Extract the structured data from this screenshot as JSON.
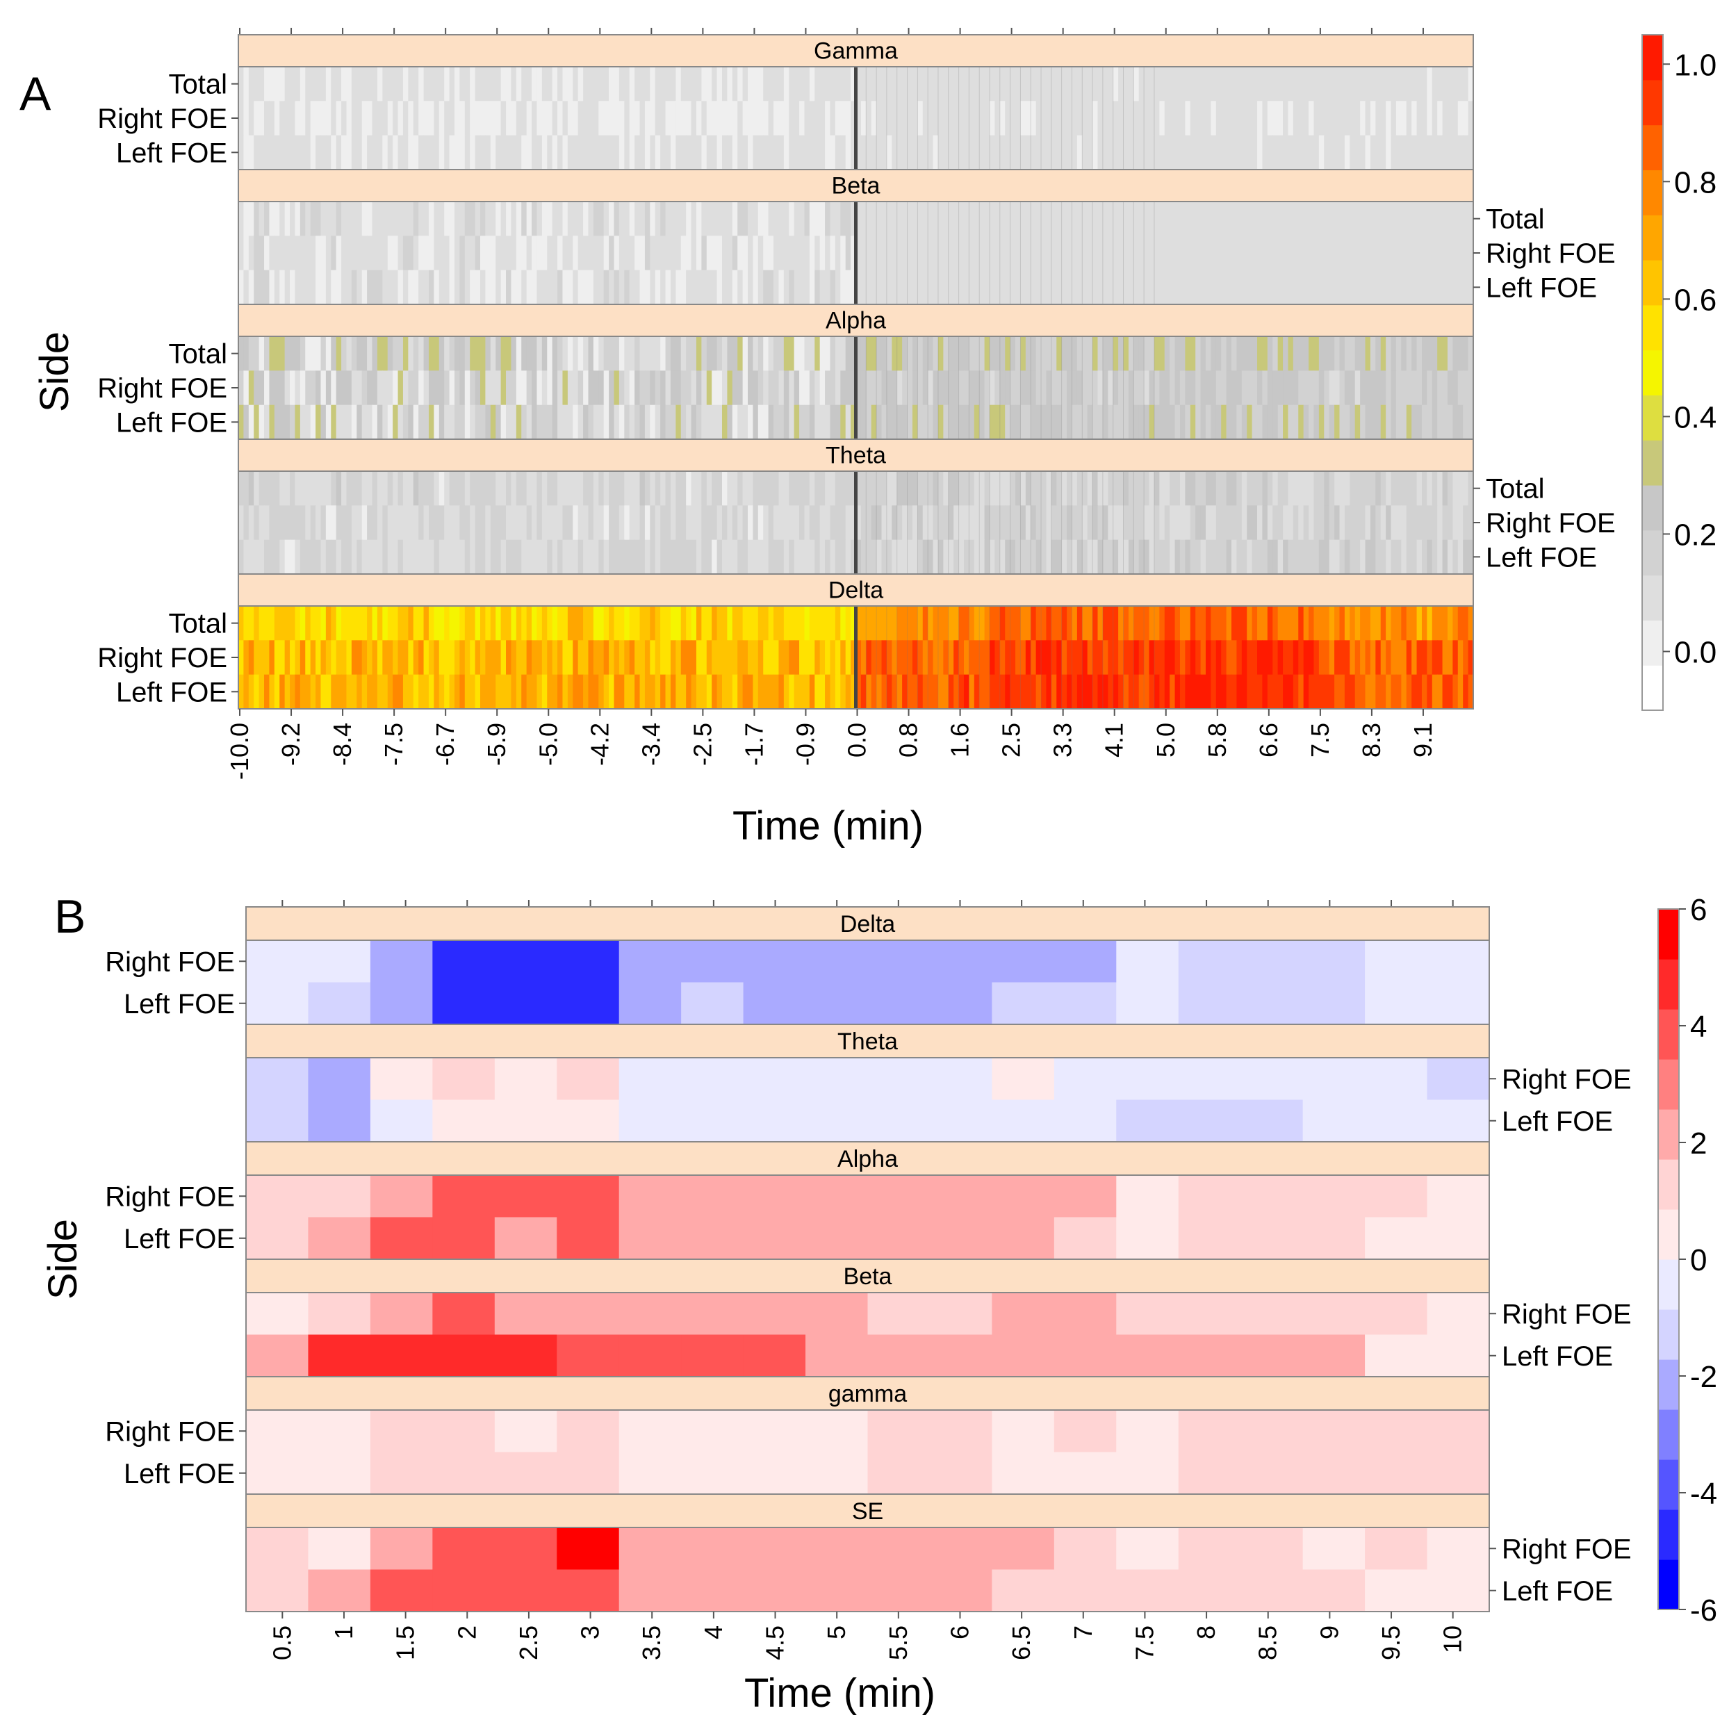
{
  "panels": [
    {
      "letter": "A",
      "chart_data": {
        "type": "heatmap",
        "panel_label": "A",
        "xlabel": "Time (min)",
        "ylabel": "Side",
        "rows": [
          "Total",
          "Right FOE",
          "Left FOE"
        ],
        "x_tick_labels": [
          "-10.0",
          "-9.2",
          "-8.4",
          "-7.5",
          "-6.7",
          "-5.9",
          "-5.0",
          "-4.2",
          "-3.4",
          "-2.5",
          "-1.7",
          "-0.9",
          "0.0",
          "0.8",
          "1.6",
          "2.5",
          "3.3",
          "4.1",
          "5.0",
          "5.8",
          "6.6",
          "7.5",
          "8.3",
          "9.1"
        ],
        "n_columns": 240,
        "event_column": 120,
        "colorbar": {
          "ticks": [
            "1.0",
            "0.8",
            "0.6",
            "0.4",
            "0.2",
            "0.0"
          ],
          "range": [
            -0.1,
            1.05
          ],
          "colors": [
            "#ffffff",
            "#efefef",
            "#dedede",
            "#d2d2d2",
            "#c7c7c7",
            "#c8c87a",
            "#dede40",
            "#f5f500",
            "#ffe200",
            "#ffc400",
            "#ffa600",
            "#ff8800",
            "#ff6200",
            "#ff3800",
            "#ff1a00"
          ]
        },
        "facets": [
          {
            "name": "Gamma",
            "label_side": "left",
            "base": [
              0.06,
              0.05,
              0.06
            ],
            "amp": [
              0.02,
              0.02,
              0.02
            ],
            "pre_noise": 0.02,
            "post_noise": 0.03
          },
          {
            "name": "Beta",
            "label_side": "right",
            "base": [
              0.08,
              0.07,
              0.08
            ],
            "amp": [
              0.02,
              0.02,
              0.02
            ],
            "pre_noise": 0.08,
            "post_noise": 0.03
          },
          {
            "name": "Alpha",
            "label_side": "left",
            "base": [
              0.18,
              0.15,
              0.16
            ],
            "amp": [
              0.06,
              0.05,
              0.07
            ],
            "pre_noise": 0.16,
            "post_noise": 0.08
          },
          {
            "name": "Theta",
            "label_side": "right",
            "base": [
              0.13,
              0.12,
              0.13
            ],
            "amp": [
              0.03,
              0.03,
              0.03
            ],
            "pre_noise": 0.08,
            "post_noise": 0.08
          },
          {
            "name": "Delta",
            "label_side": "left",
            "base": [
              0.56,
              0.66,
              0.68
            ],
            "amp": [
              0.2,
              0.2,
              0.2
            ],
            "pre_noise": 0.12,
            "post_noise": 0.1
          }
        ]
      }
    },
    {
      "letter": "B",
      "chart_data": {
        "type": "heatmap",
        "panel_label": "B",
        "xlabel": "Time (min)",
        "ylabel": "Side",
        "rows": [
          "Right FOE",
          "Left FOE"
        ],
        "x_tick_labels": [
          "0.5",
          "1",
          "1.5",
          "2",
          "2.5",
          "3",
          "3.5",
          "4",
          "4.5",
          "5",
          "5.5",
          "6",
          "6.5",
          "7",
          "7.5",
          "8",
          "8.5",
          "9",
          "9.5",
          "10"
        ],
        "colorbar": {
          "ticks": [
            "6",
            "4",
            "2",
            "0",
            "-2",
            "-4",
            "-6"
          ],
          "range": [
            -6,
            6
          ],
          "colors": [
            "#0000ff",
            "#2a2aff",
            "#5555ff",
            "#8080ff",
            "#aaaaff",
            "#d4d4ff",
            "#eaeaff",
            "#ffeaea",
            "#ffd4d4",
            "#ffaaaa",
            "#ff8080",
            "#ff5555",
            "#ff2a2a",
            "#ff0000"
          ]
        },
        "facets": [
          {
            "name": "Delta",
            "label_side": "left",
            "values": [
              [
                -0.5,
                -0.5,
                -2.5,
                -4.5,
                -4.5,
                -4.5,
                -2.5,
                -2.5,
                -2.5,
                -2.5,
                -2.5,
                -2.5,
                -2.5,
                -2.5,
                -0.5,
                -1.5,
                -1.5,
                -1.5,
                -0.5,
                -0.5
              ],
              [
                -0.5,
                -1.5,
                -2.5,
                -4.5,
                -4.5,
                -4.5,
                -2.5,
                -1.5,
                -2.5,
                -2.5,
                -2.5,
                -2.5,
                -1.5,
                -1.5,
                -0.5,
                -1.5,
                -1.5,
                -1.5,
                -0.5,
                -0.5
              ]
            ]
          },
          {
            "name": "Theta",
            "label_side": "right",
            "values": [
              [
                -1.5,
                -2.5,
                0.5,
                1.5,
                0.5,
                1.5,
                -0.5,
                -0.5,
                -0.5,
                -0.5,
                -0.5,
                -0.5,
                0.5,
                -0.5,
                -0.5,
                -0.5,
                -0.5,
                -0.5,
                -0.5,
                -1.5
              ],
              [
                -1.5,
                -2.5,
                -0.5,
                0.5,
                0.5,
                0.5,
                -0.5,
                -0.5,
                -0.5,
                -0.5,
                -0.5,
                -0.5,
                -0.5,
                -0.5,
                -1.5,
                -1.5,
                -1.5,
                -0.5,
                -0.5,
                -0.5
              ]
            ]
          },
          {
            "name": "Alpha",
            "label_side": "left",
            "values": [
              [
                1.5,
                1.5,
                2.5,
                3.5,
                3.5,
                3.5,
                2.5,
                2.5,
                2.5,
                2.5,
                2.5,
                2.5,
                2.5,
                2.5,
                0.5,
                1.5,
                1.5,
                1.5,
                1.5,
                0.5
              ],
              [
                1.5,
                2.5,
                3.5,
                3.5,
                2.5,
                3.5,
                2.5,
                2.5,
                2.5,
                2.5,
                2.5,
                2.5,
                2.5,
                1.5,
                0.5,
                1.5,
                1.5,
                1.5,
                0.5,
                0.5
              ]
            ]
          },
          {
            "name": "Beta",
            "label_side": "right",
            "values": [
              [
                0.5,
                1.5,
                2.5,
                3.5,
                2.5,
                2.5,
                2.5,
                2.5,
                2.5,
                2.5,
                1.5,
                1.5,
                2.5,
                2.5,
                1.5,
                1.5,
                1.5,
                1.5,
                1.5,
                0.5
              ],
              [
                2.5,
                4.5,
                4.5,
                4.5,
                4.5,
                3.5,
                3.5,
                3.5,
                3.5,
                2.5,
                2.5,
                2.5,
                2.5,
                2.5,
                2.5,
                2.5,
                2.5,
                2.5,
                0.5,
                0.5
              ]
            ]
          },
          {
            "name": "gamma",
            "label_side": "left",
            "values": [
              [
                0.5,
                0.5,
                1.5,
                1.5,
                0.5,
                1.5,
                0.5,
                0.5,
                0.5,
                0.5,
                1.5,
                1.5,
                0.5,
                1.5,
                0.5,
                1.5,
                1.5,
                1.5,
                1.5,
                1.5
              ],
              [
                0.5,
                0.5,
                1.5,
                1.5,
                1.5,
                1.5,
                0.5,
                0.5,
                0.5,
                0.5,
                1.5,
                1.5,
                0.5,
                0.5,
                0.5,
                1.5,
                1.5,
                1.5,
                1.5,
                1.5
              ]
            ]
          },
          {
            "name": "SE",
            "label_side": "right",
            "values": [
              [
                1.5,
                0.5,
                2.5,
                3.5,
                3.5,
                5.5,
                2.5,
                2.5,
                2.5,
                2.5,
                2.5,
                2.5,
                2.5,
                1.5,
                0.5,
                1.5,
                1.5,
                0.5,
                1.5,
                0.5
              ],
              [
                1.5,
                2.5,
                3.5,
                3.5,
                3.5,
                3.5,
                2.5,
                2.5,
                2.5,
                2.5,
                2.5,
                2.5,
                1.5,
                1.5,
                1.5,
                1.5,
                1.5,
                1.5,
                0.5,
                0.5
              ]
            ]
          }
        ]
      }
    }
  ]
}
